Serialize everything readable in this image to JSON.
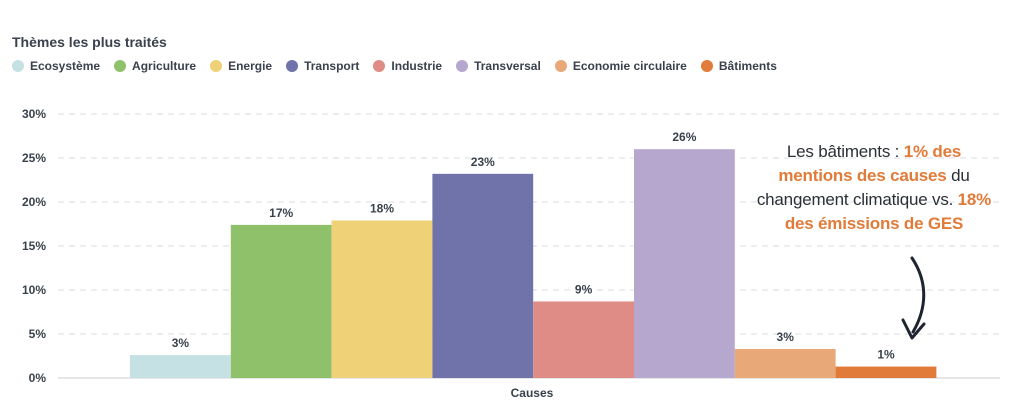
{
  "chart_data": {
    "type": "bar",
    "title": "Thèmes les plus traités",
    "categories": [
      "Causes"
    ],
    "xlabel": "Causes",
    "ylabel": "",
    "ylim": [
      0,
      30
    ],
    "yticks": [
      "0%",
      "5%",
      "10%",
      "15%",
      "20%",
      "25%",
      "30%"
    ],
    "grid": true,
    "legend_position": "top-left",
    "series": [
      {
        "name": "Ecosystème",
        "values": [
          2.6
        ],
        "label": "3%",
        "color": "#c5e1e4"
      },
      {
        "name": "Agriculture",
        "values": [
          17.4
        ],
        "label": "17%",
        "color": "#8ec16a"
      },
      {
        "name": "Energie",
        "values": [
          17.9
        ],
        "label": "18%",
        "color": "#efd278"
      },
      {
        "name": "Transport",
        "values": [
          23.2
        ],
        "label": "23%",
        "color": "#6f73aa"
      },
      {
        "name": "Industrie",
        "values": [
          8.7
        ],
        "label": "9%",
        "color": "#e08c86"
      },
      {
        "name": "Transversal",
        "values": [
          26.0
        ],
        "label": "26%",
        "color": "#b6a7cf"
      },
      {
        "name": "Economie circulaire",
        "values": [
          3.3
        ],
        "label": "3%",
        "color": "#e8a877"
      },
      {
        "name": "Bâtiments",
        "values": [
          1.3
        ],
        "label": "1%",
        "color": "#e07b39"
      }
    ]
  },
  "annotation": {
    "part1": "Les bâtiments : ",
    "part2": "1% des mentions des causes",
    "part3": " du changement climatique vs. ",
    "part4": "18% des émissions de GES"
  },
  "colors": {
    "highlight": "#e07b39",
    "arrow": "#1f2430",
    "grid": "#d9dce1"
  }
}
